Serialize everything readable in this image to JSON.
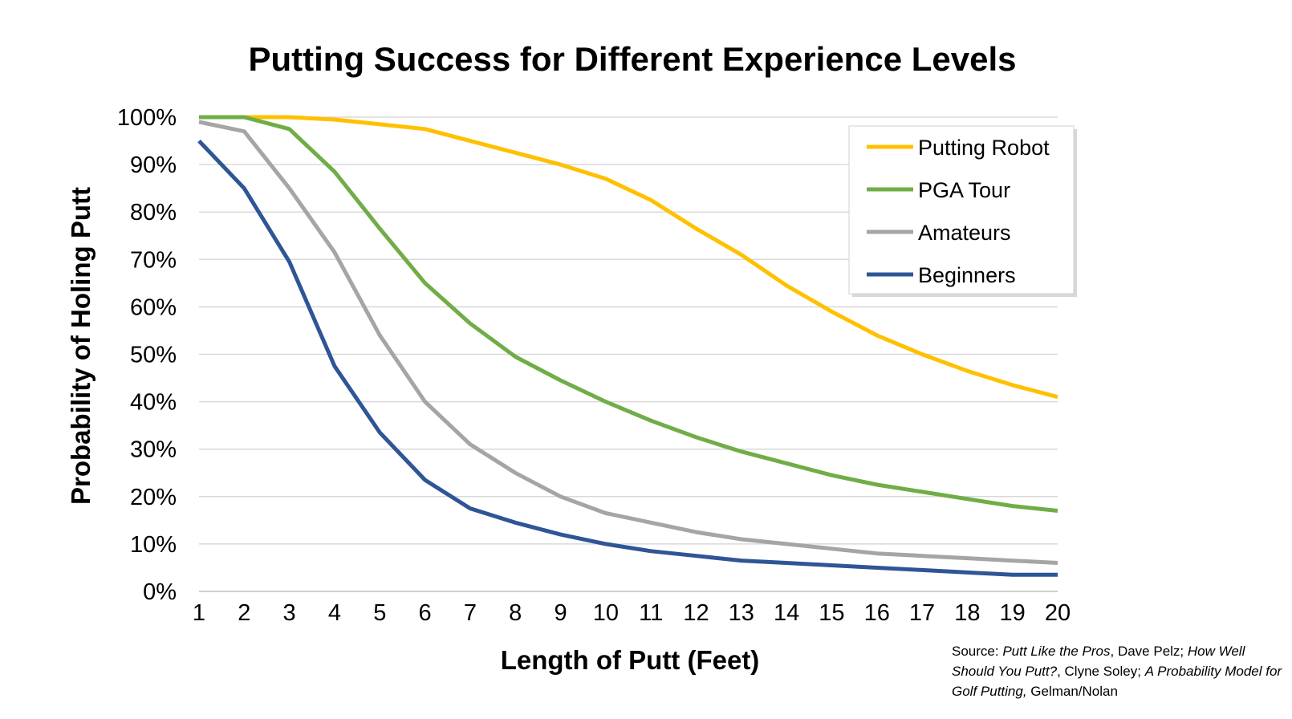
{
  "source_note": {
    "prefix": "Source:  ",
    "parts": [
      {
        "text": "Putt Like the Pros",
        "italic": true
      },
      {
        "text": ", Dave Pelz; ",
        "italic": false
      },
      {
        "text": "How Well Should You Putt?",
        "italic": true
      },
      {
        "text": ", Clyne Soley; ",
        "italic": false
      },
      {
        "text": "A Probability Model for Golf Putting,",
        "italic": true
      },
      {
        "text": " Gelman/Nolan",
        "italic": false
      }
    ]
  },
  "chart_data": {
    "type": "line",
    "title": "Putting Success for Different Experience Levels",
    "xlabel": "Length of Putt (Feet)",
    "ylabel": "Probability of Holing Putt",
    "x": [
      1,
      2,
      3,
      4,
      5,
      6,
      7,
      8,
      9,
      10,
      11,
      12,
      13,
      14,
      15,
      16,
      17,
      18,
      19,
      20
    ],
    "xlim": [
      1,
      20
    ],
    "ylim": [
      0,
      100
    ],
    "y_ticks": [
      0,
      10,
      20,
      30,
      40,
      50,
      60,
      70,
      80,
      90,
      100
    ],
    "y_tick_labels": [
      "0%",
      "10%",
      "20%",
      "30%",
      "40%",
      "50%",
      "60%",
      "70%",
      "80%",
      "90%",
      "100%"
    ],
    "grid": "horizontal",
    "legend_position": "top-right",
    "series": [
      {
        "name": "Putting Robot",
        "color": "#FFC000",
        "values": [
          100,
          100,
          100,
          99.5,
          98.5,
          97.5,
          95,
          92.5,
          90,
          87,
          82.5,
          76.5,
          71,
          64.5,
          59,
          54,
          50,
          46.5,
          43.5,
          41
        ]
      },
      {
        "name": "PGA Tour",
        "color": "#70AD47",
        "values": [
          100,
          100,
          97.5,
          88.5,
          76.5,
          65,
          56.5,
          49.5,
          44.5,
          40,
          36,
          32.5,
          29.5,
          27,
          24.5,
          22.5,
          21,
          19.5,
          18,
          17
        ]
      },
      {
        "name": "Amateurs",
        "color": "#A5A5A5",
        "values": [
          99,
          97,
          85,
          71.5,
          54,
          40,
          31,
          25,
          20,
          16.5,
          14.5,
          12.5,
          11,
          10,
          9,
          8,
          7.5,
          7,
          6.5,
          6
        ]
      },
      {
        "name": "Beginners",
        "color": "#2F5597",
        "values": [
          95,
          85,
          69.5,
          47.5,
          33.5,
          23.5,
          17.5,
          14.5,
          12,
          10,
          8.5,
          7.5,
          6.5,
          6,
          5.5,
          5,
          4.5,
          4,
          3.5,
          3.5
        ]
      }
    ]
  }
}
